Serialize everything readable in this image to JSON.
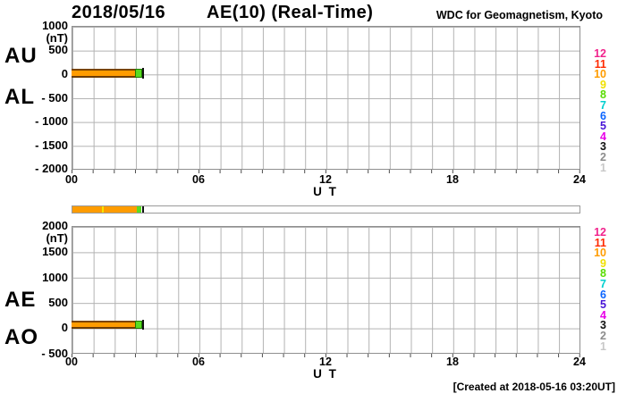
{
  "header": {
    "date": "2018/05/16",
    "title": "AE(10) (Real-Time)",
    "organization": "WDC for Geomagnetism, Kyoto"
  },
  "footer": {
    "created": "[Created at 2018-05-16 03:20UT]"
  },
  "legend": {
    "stations": [
      {
        "label": "12",
        "color": "#f1238c"
      },
      {
        "label": "11",
        "color": "#ff2a00"
      },
      {
        "label": "10",
        "color": "#ff9c00"
      },
      {
        "label": "9",
        "color": "#f0e000"
      },
      {
        "label": "8",
        "color": "#58dc00"
      },
      {
        "label": "7",
        "color": "#00cfcf"
      },
      {
        "label": "6",
        "color": "#0a64ff"
      },
      {
        "label": "5",
        "color": "#4713d6"
      },
      {
        "label": "4",
        "color": "#e800e8"
      },
      {
        "label": "3",
        "color": "#111111"
      },
      {
        "label": "2",
        "color": "#8c8c8c"
      },
      {
        "label": "1",
        "color": "#c8c8c8"
      }
    ]
  },
  "panel_top": {
    "upper_label": "AU",
    "lower_label": "AL",
    "unit": "(nT)",
    "yticks": [
      "1000",
      "500",
      "0",
      "- 500",
      "- 1000",
      "- 1500",
      "- 2000"
    ],
    "xticks": [
      "00",
      "06",
      "12",
      "18",
      "24"
    ],
    "xlabel": "U T"
  },
  "panel_bottom": {
    "upper_label": "AE",
    "lower_label": "AO",
    "unit": "(nT)",
    "yticks": [
      "2000",
      "1500",
      "1000",
      "500",
      "0",
      "- 500"
    ],
    "xticks": [
      "00",
      "06",
      "12",
      "18",
      "24"
    ],
    "xlabel": "U T"
  },
  "availability_bar": {
    "data_color": "#ff9c00",
    "latest_segment_color": "#58dc22",
    "current_time_marker_color": "#111111",
    "data_extent_hours": 3.33
  },
  "chart_data": [
    {
      "type": "line",
      "title": "AU / AL auroral electrojet indices, 2018/05/16 (Real-Time, 10 stations)",
      "ylabel": "(nT)",
      "ylim": [
        -2000,
        1000
      ],
      "yticks": [
        1000,
        500,
        0,
        -500,
        -1000,
        -1500,
        -2000
      ],
      "xlabel": "U T",
      "xlim_hours": [
        0,
        24
      ],
      "xticks_hours": [
        0,
        6,
        12,
        18,
        24
      ],
      "grid": true,
      "data_start_hour": 0.0,
      "data_end_hour": 3.33,
      "series": [
        {
          "name": "AU",
          "color": "#ff9c00",
          "approx_value_nT": 50,
          "approx_range_nT": [
            20,
            90
          ],
          "note": "near-constant quiet band just above 0"
        },
        {
          "name": "AL",
          "color": "#ff9c00",
          "approx_value_nT": -50,
          "approx_range_nT": [
            -90,
            -20
          ],
          "note": "near-constant quiet band just below 0"
        }
      ],
      "end_marker": {
        "shape": "square",
        "color": "#58dc22"
      }
    },
    {
      "type": "line",
      "title": "AE / AO auroral electrojet indices, 2018/05/16 (Real-Time, 10 stations)",
      "ylabel": "(nT)",
      "ylim": [
        -500,
        2000
      ],
      "yticks": [
        2000,
        1500,
        1000,
        500,
        0,
        -500
      ],
      "xlabel": "U T",
      "xlim_hours": [
        0,
        24
      ],
      "xticks_hours": [
        0,
        6,
        12,
        18,
        24
      ],
      "grid": true,
      "data_start_hour": 0.0,
      "data_end_hour": 3.33,
      "series": [
        {
          "name": "AE",
          "color": "#ff9c00",
          "approx_value_nT": 80,
          "approx_range_nT": [
            20,
            140
          ],
          "note": "near-constant quiet band just above 0"
        },
        {
          "name": "AO",
          "color": "#ff9c00",
          "approx_value_nT": 0,
          "approx_range_nT": [
            -30,
            30
          ],
          "note": "near-constant quiet band at 0"
        }
      ],
      "end_marker": {
        "shape": "square",
        "color": "#58dc22"
      }
    }
  ]
}
